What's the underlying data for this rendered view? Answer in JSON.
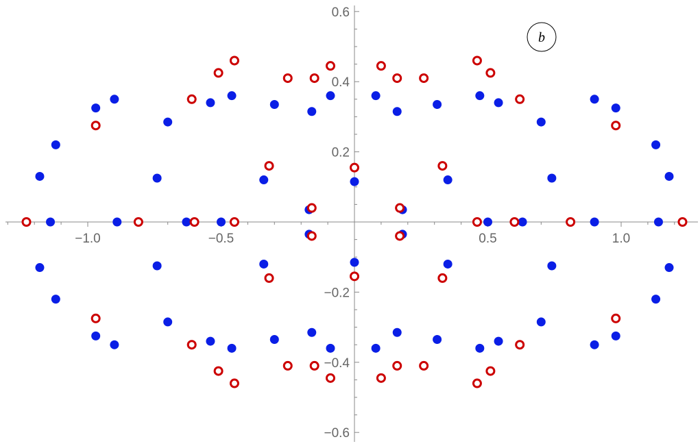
{
  "chart_data": {
    "type": "scatter",
    "title": "",
    "xlabel": "",
    "ylabel": "",
    "xlim": [
      -1.3,
      1.3
    ],
    "ylim": [
      -0.62,
      0.62
    ],
    "grid": false,
    "legend": "none",
    "annotation": "b",
    "x_ticks": [
      -1.0,
      -0.5,
      0.5,
      1.0
    ],
    "x_tick_labels": [
      "−1.0",
      "−0.5",
      "0.5",
      "1.0"
    ],
    "y_ticks": [
      -0.6,
      -0.4,
      -0.2,
      0.2,
      0.4,
      0.6
    ],
    "y_tick_labels": [
      "−0.6",
      "−0.4",
      "−0.2",
      "0.2",
      "0.4",
      "0.6"
    ],
    "colors": {
      "filled": "#0a1ee6",
      "open": "#cc0000",
      "axis": "#888888"
    },
    "series": [
      {
        "marker": "filled-circle",
        "points": [
          [
            -0.9,
            0.35
          ],
          [
            -0.97,
            0.325
          ],
          [
            -1.12,
            0.22
          ],
          [
            -1.18,
            0.13
          ],
          [
            -0.7,
            0.285
          ],
          [
            -0.74,
            0.125
          ],
          [
            -0.54,
            0.34
          ],
          [
            -0.46,
            0.36
          ],
          [
            -0.3,
            0.335
          ],
          [
            -0.16,
            0.315
          ],
          [
            -0.09,
            0.36
          ],
          [
            -0.34,
            0.12
          ],
          [
            -0.17,
            0.035
          ],
          [
            0.0,
            0.115
          ],
          [
            0.08,
            0.36
          ],
          [
            0.16,
            0.315
          ],
          [
            0.31,
            0.335
          ],
          [
            0.47,
            0.36
          ],
          [
            0.54,
            0.34
          ],
          [
            0.7,
            0.285
          ],
          [
            0.74,
            0.125
          ],
          [
            0.35,
            0.12
          ],
          [
            0.18,
            0.035
          ],
          [
            0.9,
            0.35
          ],
          [
            0.98,
            0.325
          ],
          [
            1.13,
            0.22
          ],
          [
            1.18,
            0.13
          ],
          [
            -1.14,
            0.0
          ],
          [
            -0.89,
            0.0
          ],
          [
            -0.63,
            0.0
          ],
          [
            -0.5,
            0.0
          ],
          [
            0.5,
            0.0
          ],
          [
            0.63,
            0.0
          ],
          [
            0.9,
            0.0
          ],
          [
            1.14,
            0.0
          ],
          [
            -0.9,
            -0.35
          ],
          [
            -0.97,
            -0.325
          ],
          [
            -1.12,
            -0.22
          ],
          [
            -1.18,
            -0.13
          ],
          [
            -0.7,
            -0.285
          ],
          [
            -0.74,
            -0.125
          ],
          [
            -0.54,
            -0.34
          ],
          [
            -0.46,
            -0.36
          ],
          [
            -0.3,
            -0.335
          ],
          [
            -0.16,
            -0.315
          ],
          [
            -0.09,
            -0.36
          ],
          [
            -0.34,
            -0.12
          ],
          [
            -0.17,
            -0.035
          ],
          [
            0.0,
            -0.115
          ],
          [
            0.08,
            -0.36
          ],
          [
            0.16,
            -0.315
          ],
          [
            0.31,
            -0.335
          ],
          [
            0.47,
            -0.36
          ],
          [
            0.54,
            -0.34
          ],
          [
            0.7,
            -0.285
          ],
          [
            0.74,
            -0.125
          ],
          [
            0.35,
            -0.12
          ],
          [
            0.18,
            -0.035
          ],
          [
            0.9,
            -0.35
          ],
          [
            0.98,
            -0.325
          ],
          [
            1.13,
            -0.22
          ],
          [
            1.18,
            -0.13
          ]
        ]
      },
      {
        "marker": "open-circle",
        "points": [
          [
            -0.97,
            0.275
          ],
          [
            -0.61,
            0.35
          ],
          [
            -0.51,
            0.425
          ],
          [
            -0.45,
            0.46
          ],
          [
            -0.25,
            0.41
          ],
          [
            -0.15,
            0.41
          ],
          [
            -0.09,
            0.445
          ],
          [
            -0.32,
            0.16
          ],
          [
            -0.16,
            0.04
          ],
          [
            0.0,
            0.155
          ],
          [
            0.1,
            0.445
          ],
          [
            0.16,
            0.41
          ],
          [
            0.26,
            0.41
          ],
          [
            0.33,
            0.16
          ],
          [
            0.17,
            0.04
          ],
          [
            0.46,
            0.46
          ],
          [
            0.51,
            0.425
          ],
          [
            0.62,
            0.35
          ],
          [
            0.98,
            0.275
          ],
          [
            -1.23,
            0.0
          ],
          [
            -0.81,
            0.0
          ],
          [
            -0.6,
            0.0
          ],
          [
            -0.45,
            0.0
          ],
          [
            0.46,
            0.0
          ],
          [
            0.6,
            0.0
          ],
          [
            0.81,
            0.0
          ],
          [
            1.23,
            0.0
          ],
          [
            -0.97,
            -0.275
          ],
          [
            -0.61,
            -0.35
          ],
          [
            -0.51,
            -0.425
          ],
          [
            -0.45,
            -0.46
          ],
          [
            -0.25,
            -0.41
          ],
          [
            -0.15,
            -0.41
          ],
          [
            -0.09,
            -0.445
          ],
          [
            -0.32,
            -0.16
          ],
          [
            -0.16,
            -0.04
          ],
          [
            0.0,
            -0.155
          ],
          [
            0.1,
            -0.445
          ],
          [
            0.16,
            -0.41
          ],
          [
            0.26,
            -0.41
          ],
          [
            0.33,
            -0.16
          ],
          [
            0.17,
            -0.04
          ],
          [
            0.46,
            -0.46
          ],
          [
            0.51,
            -0.425
          ],
          [
            0.62,
            -0.35
          ],
          [
            0.98,
            -0.275
          ]
        ]
      }
    ]
  }
}
